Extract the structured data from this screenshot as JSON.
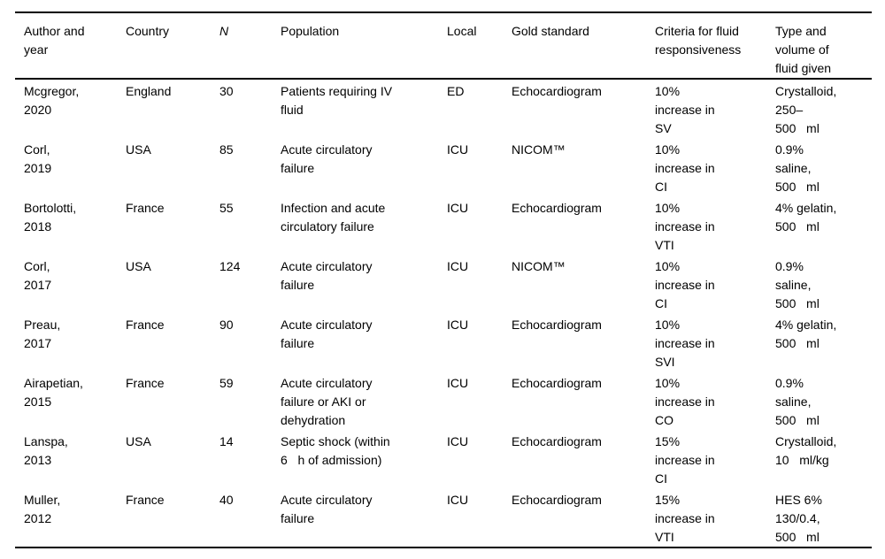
{
  "colors": {
    "text": "#000000",
    "background": "#ffffff",
    "rule": "#000000"
  },
  "table": {
    "headers": [
      "Author and\nyear",
      "Country",
      "N",
      "Population",
      "Local",
      "Gold standard",
      "Criteria for fluid\nresponsiveness",
      "Type and\nvolume of\nfluid given"
    ],
    "rows": [
      [
        "Mcgregor,\n2020",
        "England",
        "30",
        "Patients requiring IV\nfluid",
        "ED",
        "Echocardiogram",
        "10%\nincrease in\nSV",
        "Crystalloid,\n250–\n500   ml"
      ],
      [
        "Corl,\n2019",
        "USA",
        "85",
        "Acute circulatory\nfailure",
        "ICU",
        "NICOM™",
        "10%\nincrease in\nCI",
        "0.9%\nsaline,\n500   ml"
      ],
      [
        "Bortolotti,\n2018",
        "France",
        "55",
        "Infection and acute\ncirculatory failure",
        "ICU",
        "Echocardiogram",
        "10%\nincrease in\nVTI",
        "4% gelatin,\n500   ml"
      ],
      [
        "Corl,\n2017",
        "USA",
        "124",
        "Acute circulatory\nfailure",
        "ICU",
        "NICOM™",
        "10%\nincrease in\nCI",
        "0.9%\nsaline,\n500   ml"
      ],
      [
        "Preau,\n2017",
        "France",
        "90",
        "Acute circulatory\nfailure",
        "ICU",
        "Echocardiogram",
        "10%\nincrease in\nSVI",
        "4% gelatin,\n500   ml"
      ],
      [
        "Airapetian,\n2015",
        "France",
        "59",
        "Acute circulatory\nfailure or AKI or\ndehydration",
        "ICU",
        "Echocardiogram",
        "10%\nincrease in\nCO",
        "0.9%\nsaline,\n500   ml"
      ],
      [
        "Lanspa,\n2013",
        "USA",
        "14",
        "Septic shock (within\n6   h of admission)",
        "ICU",
        "Echocardiogram",
        "15%\nincrease in\nCI",
        "Crystalloid,\n10   ml/kg"
      ],
      [
        "Muller,\n2012",
        "France",
        "40",
        "Acute circulatory\nfailure",
        "ICU",
        "Echocardiogram",
        "15%\nincrease in\nVTI",
        "HES 6%\n130/0.4,\n500   ml"
      ]
    ]
  }
}
